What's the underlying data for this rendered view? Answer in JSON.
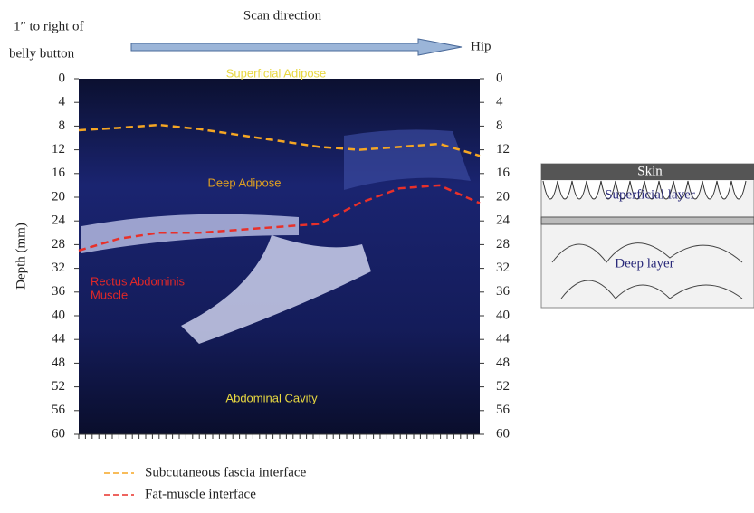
{
  "header": {
    "title": "Scan direction",
    "left_line1": "1″ to right of",
    "left_line2": "belly button",
    "right": "Hip"
  },
  "axis": {
    "label": "Depth (mm)",
    "ylim": [
      0,
      60
    ],
    "yticks": [
      0,
      4,
      8,
      12,
      16,
      20,
      24,
      28,
      32,
      36,
      40,
      44,
      48,
      52,
      56,
      60
    ]
  },
  "image_labels": {
    "superficial": "Superficial Adipose",
    "deep": "Deep Adipose",
    "muscle_line1": "Rectus Abdominis",
    "muscle_line2": "Muscle",
    "cavity": "Abdominal Cavity"
  },
  "series": [
    {
      "name": "Subcutaneous fascia interface",
      "color": "#f5a623",
      "values": [
        8.7,
        8.3,
        7.8,
        8.5,
        9.5,
        10.5,
        11.5,
        12,
        11.5,
        11,
        13
      ]
    },
    {
      "name": "Fat-muscle interface",
      "color": "#e8302a",
      "values": [
        29,
        27,
        26,
        26,
        25.5,
        25,
        24.5,
        21,
        18.5,
        18,
        21
      ]
    }
  ],
  "diagram": {
    "skin": "Skin",
    "superficial": "Superficial layer",
    "deep": "Deep layer"
  }
}
